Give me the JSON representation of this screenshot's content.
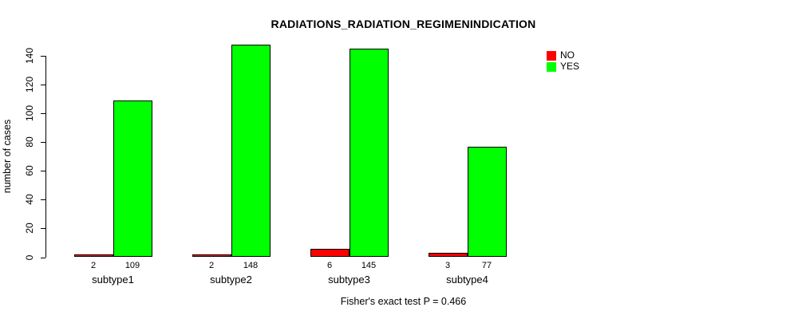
{
  "chart_data": {
    "type": "bar",
    "title": "RADIATIONS_RADIATION_REGIMENINDICATION",
    "ylabel": "number of cases",
    "xlabel": "",
    "categories": [
      "subtype1",
      "subtype2",
      "subtype3",
      "subtype4"
    ],
    "series": [
      {
        "name": "NO",
        "color": "#FF0000",
        "values": [
          2,
          2,
          6,
          3
        ]
      },
      {
        "name": "YES",
        "color": "#00FF00",
        "values": [
          109,
          148,
          145,
          77
        ]
      }
    ],
    "ylim": [
      0,
      140
    ],
    "yticks": [
      0,
      20,
      40,
      60,
      80,
      100,
      120,
      140
    ],
    "grid": false,
    "bar_labels_shown": true,
    "legend_position": "top-right",
    "legend_entries": [
      "NO",
      "YES"
    ],
    "footer": "Fisher's exact test P = 0.466"
  }
}
